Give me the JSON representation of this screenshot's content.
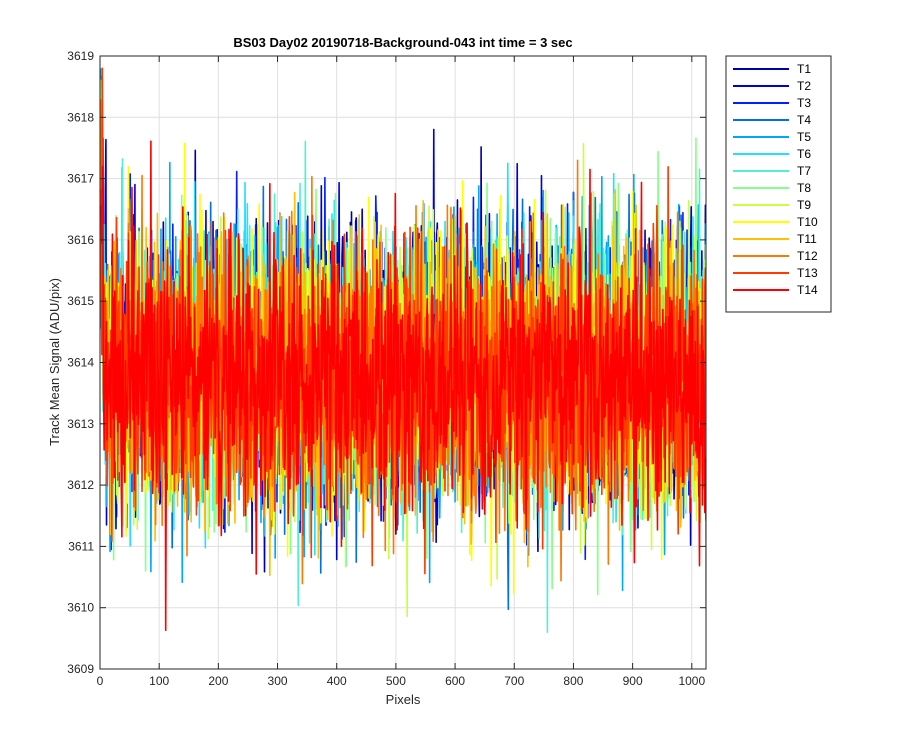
{
  "chart_data": {
    "type": "line",
    "title": "BS03 Day02 20190718-Background-043 int time = 3 sec",
    "xlabel": "Pixels",
    "ylabel": "Track Mean Signal (ADU/pix)",
    "xlim": [
      0,
      1024
    ],
    "ylim": [
      3609,
      3619
    ],
    "xticks": [
      0,
      100,
      200,
      300,
      400,
      500,
      600,
      700,
      800,
      900,
      1000
    ],
    "yticks": [
      3609,
      3610,
      3611,
      3612,
      3613,
      3614,
      3615,
      3616,
      3617,
      3618,
      3619
    ],
    "grid": true,
    "legend_position": "outside-top-right",
    "x": {
      "start": 1,
      "end": 1024,
      "step": 1
    },
    "noise_model": {
      "mean": 3613.8,
      "std_dev": 1.1,
      "min_observed": 3609.6,
      "max_observed": 3618.8
    },
    "series": [
      {
        "name": "T1",
        "color": "#0000aa",
        "mean": 3614.0,
        "std_dev": 1.1
      },
      {
        "name": "T2",
        "color": "#0000d5",
        "mean": 3614.0,
        "std_dev": 1.1
      },
      {
        "name": "T3",
        "color": "#0020ff",
        "mean": 3613.9,
        "std_dev": 1.1
      },
      {
        "name": "T4",
        "color": "#0070e8",
        "mean": 3613.9,
        "std_dev": 1.1
      },
      {
        "name": "T5",
        "color": "#00a8f8",
        "mean": 3613.9,
        "std_dev": 1.1
      },
      {
        "name": "T6",
        "color": "#22e0ff",
        "mean": 3613.9,
        "std_dev": 1.1
      },
      {
        "name": "T7",
        "color": "#50f0d0",
        "mean": 3613.8,
        "std_dev": 1.1
      },
      {
        "name": "T8",
        "color": "#88ff88",
        "mean": 3613.8,
        "std_dev": 1.1
      },
      {
        "name": "T9",
        "color": "#c8ff40",
        "mean": 3613.8,
        "std_dev": 1.1
      },
      {
        "name": "T10",
        "color": "#ffff00",
        "mean": 3613.8,
        "std_dev": 1.1
      },
      {
        "name": "T11",
        "color": "#ffc000",
        "mean": 3613.7,
        "std_dev": 1.1
      },
      {
        "name": "T12",
        "color": "#ff7800",
        "mean": 3613.7,
        "std_dev": 1.1
      },
      {
        "name": "T13",
        "color": "#ff3c00",
        "mean": 3613.7,
        "std_dev": 1.1
      },
      {
        "name": "T14",
        "color": "#ff0000",
        "mean": 3613.7,
        "std_dev": 1.1
      }
    ]
  }
}
